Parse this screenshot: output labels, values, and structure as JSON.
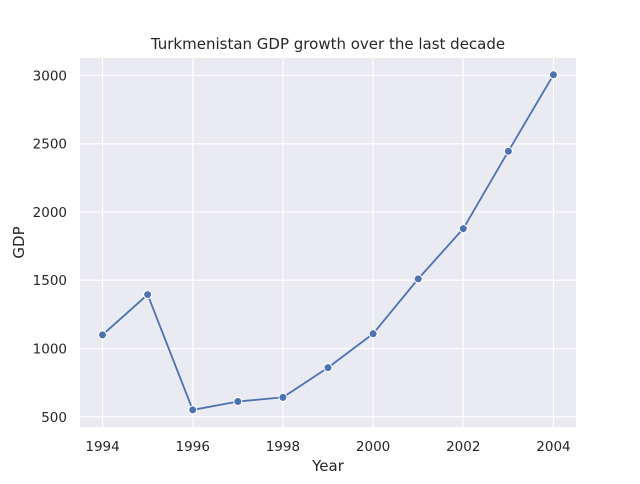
{
  "chart_data": {
    "type": "line",
    "title": "Turkmenistan GDP growth over the last decade",
    "xlabel": "Year",
    "ylabel": "GDP",
    "x": [
      1994,
      1995,
      1996,
      1997,
      1998,
      1999,
      2000,
      2001,
      2002,
      2003,
      2004
    ],
    "series": [
      {
        "values": [
          1100,
          1395,
          550,
          612,
          642,
          860,
          1108,
          1510,
          1878,
          2445,
          3005
        ]
      }
    ],
    "xticks": [
      "1994",
      "1996",
      "1998",
      "2000",
      "2002",
      "2004"
    ],
    "yticks": [
      "500",
      "1000",
      "1500",
      "2000",
      "2500",
      "3000"
    ],
    "xlim": [
      1993.5,
      2004.5
    ],
    "ylim": [
      425,
      3128
    ],
    "grid": true,
    "style": {
      "plot_background": "#eaeaf2",
      "grid_color": "#ffffff",
      "line_color": "#4c72b0",
      "marker_edge": "#ffffff"
    }
  }
}
